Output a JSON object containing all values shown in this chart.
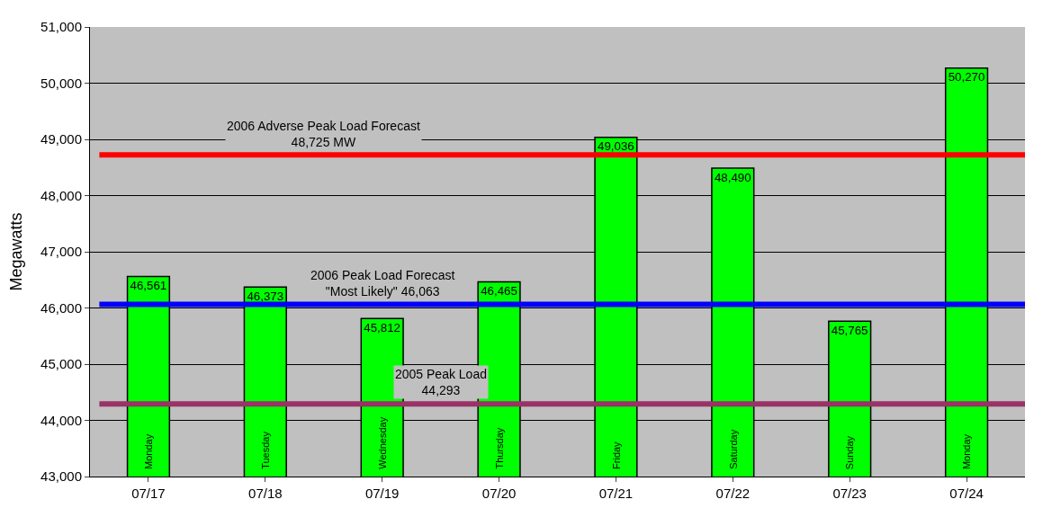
{
  "chart_data": {
    "type": "bar",
    "ylabel": "Megawatts",
    "categories": [
      "07/17",
      "07/18",
      "07/19",
      "07/20",
      "07/21",
      "07/22",
      "07/23",
      "07/24"
    ],
    "values": [
      46561,
      46373,
      45812,
      46465,
      49036,
      48490,
      45765,
      50270
    ],
    "value_labels": [
      "46,561",
      "46,373",
      "45,812",
      "46,465",
      "49,036",
      "48,490",
      "45,765",
      "50,270"
    ],
    "color": "#00ff00",
    "ylim": [
      43000,
      51000
    ],
    "yticks": [
      {
        "value": 43000,
        "label": "43,000"
      },
      {
        "value": 44000,
        "label": "44,000"
      },
      {
        "value": 45000,
        "label": "45,000"
      },
      {
        "value": 46000,
        "label": "46,000"
      },
      {
        "value": 47000,
        "label": "47,000"
      },
      {
        "value": 48000,
        "label": "48,000"
      },
      {
        "value": 49000,
        "label": "49,000"
      },
      {
        "value": 50000,
        "label": "50,000"
      },
      {
        "value": 51000,
        "label": "51,000"
      }
    ],
    "grid": "y",
    "ref_lines": [
      {
        "axis": "y",
        "value": 48725,
        "label": "2006 Adverse Peak Load Forecast\n48,725 MW",
        "color": "#ff0000"
      },
      {
        "axis": "y",
        "value": 46063,
        "label": "2006 Peak Load Forecast\n\"Most Likely\" 46,063",
        "color": "#0000ff"
      },
      {
        "axis": "y",
        "value": 44293,
        "label": "2005 Peak Load\n44,293",
        "color": "#993366"
      }
    ],
    "annotations": [
      "Monday",
      "Tuesday",
      "Wednesday",
      "Thursday",
      "Friday",
      "Saturday",
      "Sunday",
      "Monday"
    ]
  }
}
